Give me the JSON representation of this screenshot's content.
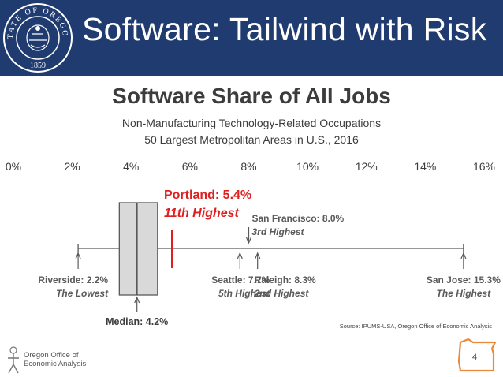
{
  "slide": {
    "title": "Software: Tailwind with Risk",
    "page_number": "4"
  },
  "seal": {
    "top_text": "STATE OF OREGON",
    "year": "1859"
  },
  "source": "Source: IPUMS-USA, Oregon Office of Economic Analysis",
  "footer": {
    "org_line1": "Oregon Office of",
    "org_line2": "Economic Analysis"
  },
  "colors": {
    "banner": "#1f3b70",
    "highlight": "#e02020",
    "box_fill": "#d9d9d9",
    "box_stroke": "#595959",
    "text": "#3c3c3c"
  },
  "chart_data": {
    "type": "boxplot",
    "title": "Software Share of All Jobs",
    "subtitle_lines": [
      "Non-Manufacturing Technology-Related Occupations",
      "50 Largest Metropolitan Areas in U.S., 2016"
    ],
    "xlim": [
      0,
      16
    ],
    "ticks": [
      0,
      2,
      4,
      6,
      8,
      10,
      12,
      14,
      16
    ],
    "tick_labels": [
      "0%",
      "2%",
      "4%",
      "6%",
      "8%",
      "10%",
      "12%",
      "14%",
      "16%"
    ],
    "box": {
      "min": 2.2,
      "q1": 3.6,
      "median": 4.2,
      "q3": 4.9,
      "max": 15.3
    },
    "median_label": "Median: 4.2%",
    "highlight": {
      "value": 5.4,
      "label": "Portland: 5.4%",
      "rank": "11th Highest"
    },
    "annotations": [
      {
        "value": 2.2,
        "label": "Riverside: 2.2%",
        "sub": "The Lowest",
        "side": "below",
        "align": "end"
      },
      {
        "value": 7.7,
        "label": "Seattle: 7.7%",
        "sub": "5th Highest",
        "side": "below",
        "align": "end"
      },
      {
        "value": 8.3,
        "label": "Raleigh: 8.3%",
        "sub": "2nd Highest",
        "side": "below",
        "align": "start"
      },
      {
        "value": 15.3,
        "label": "San Jose: 15.3%",
        "sub": "The Highest",
        "side": "below",
        "align": "middle"
      },
      {
        "value": 8.0,
        "label": "San Francisco: 8.0%",
        "sub": "3rd Highest",
        "side": "above",
        "align": "start"
      }
    ]
  }
}
